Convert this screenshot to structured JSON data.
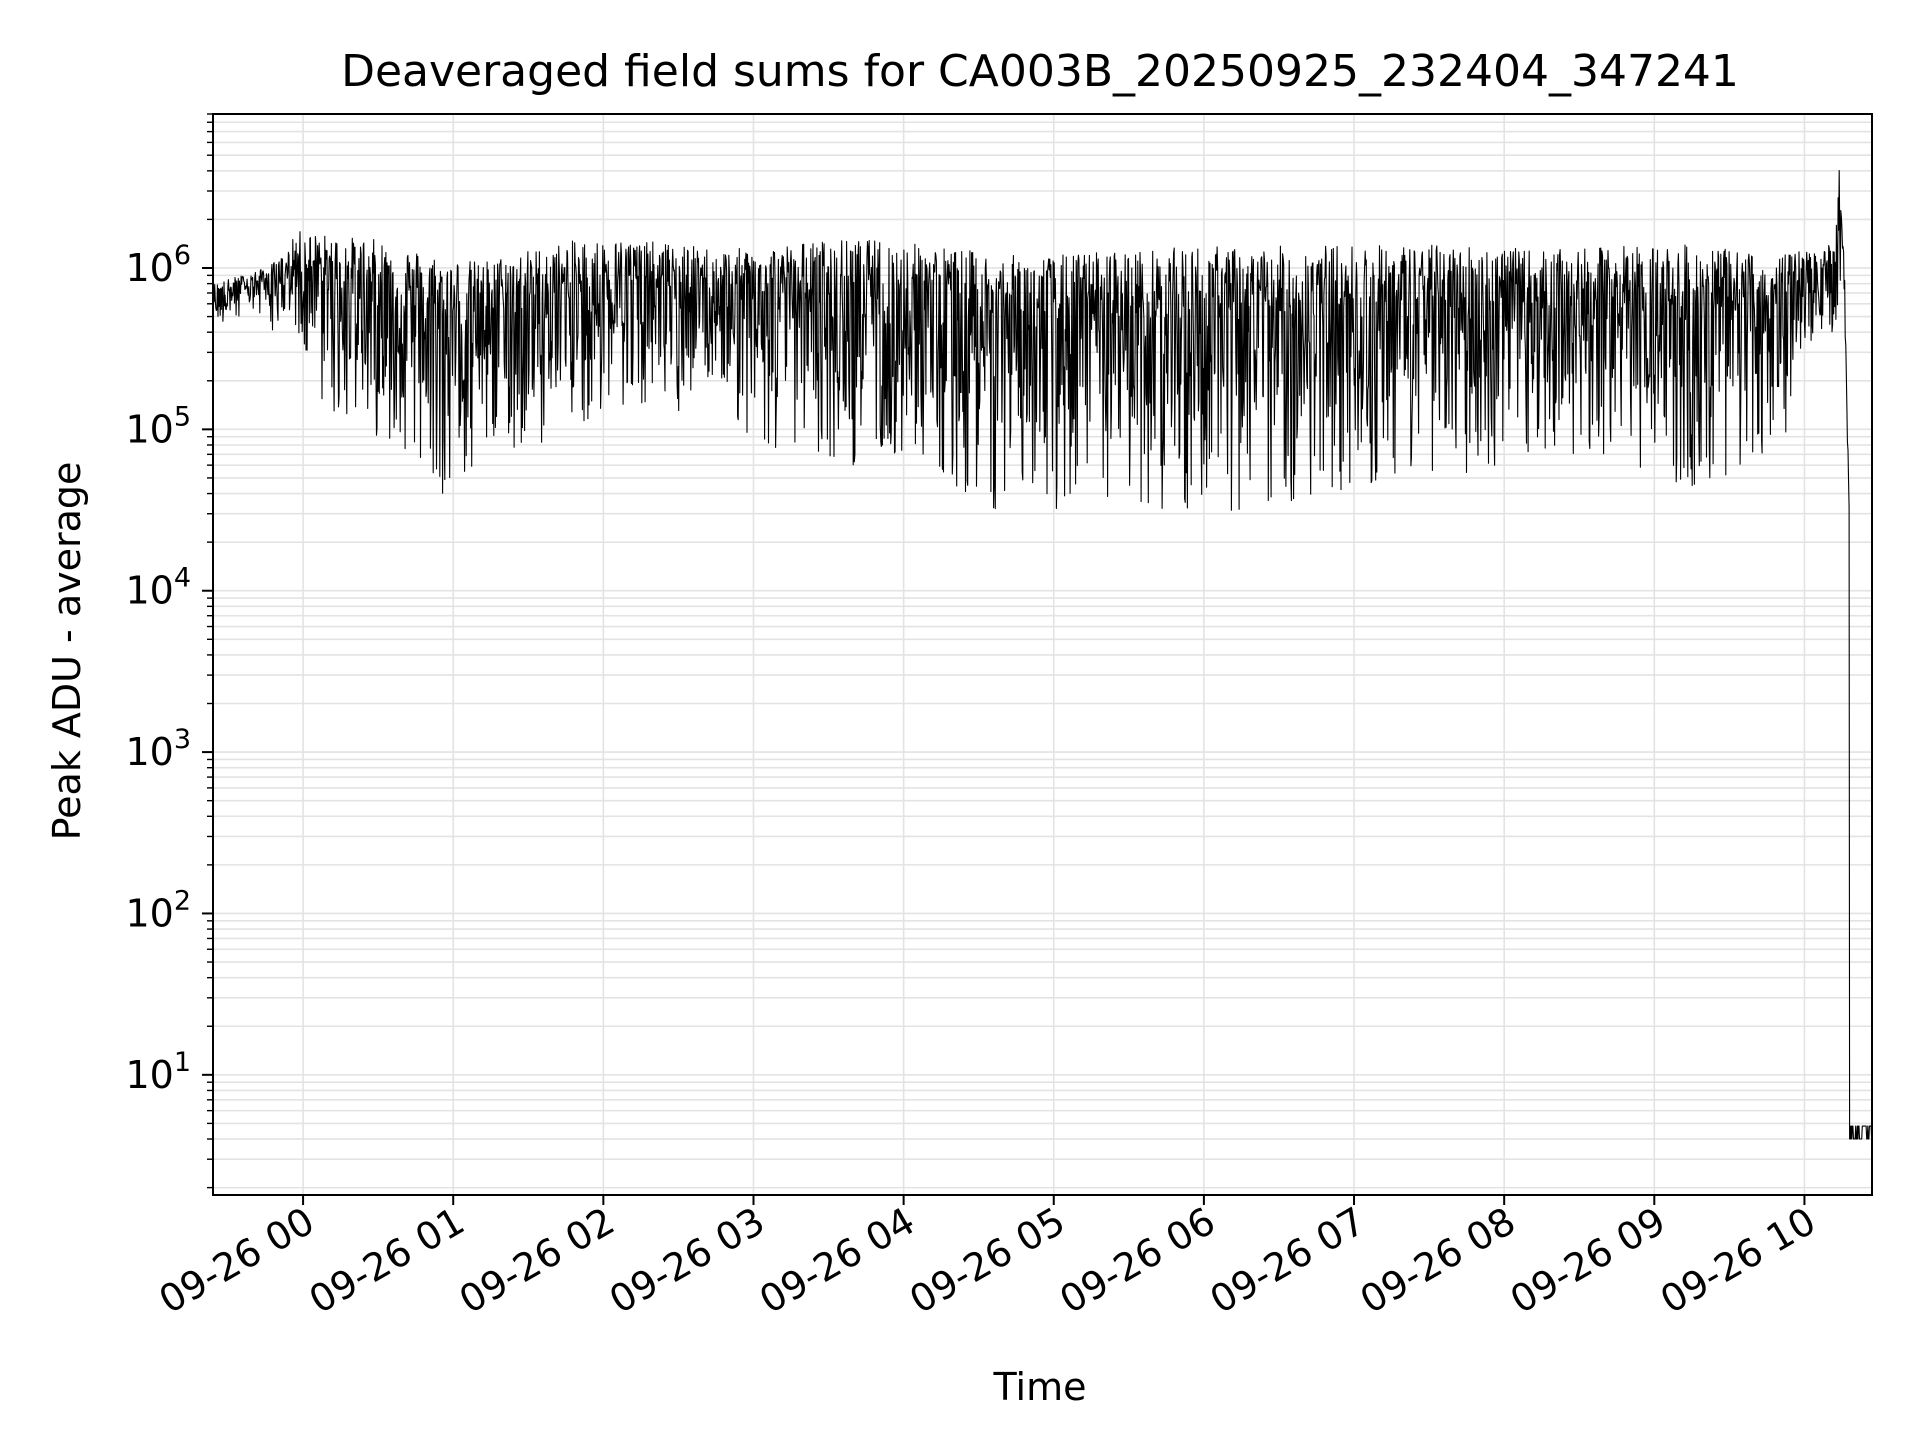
{
  "chart_data": {
    "type": "line",
    "title": "Deaveraged field sums for CA003B_20250925_232404_347241",
    "xlabel": "Time",
    "ylabel": "Peak ADU - average",
    "yscale": "log",
    "ylim": [
      1.8,
      9000000
    ],
    "xlim": [
      "09-25 23:24",
      "09-26 10:27"
    ],
    "x_ticks": [
      "09-26 00",
      "09-26 01",
      "09-26 02",
      "09-26 03",
      "09-26 04",
      "09-26 05",
      "09-26 06",
      "09-26 07",
      "09-26 08",
      "09-26 09",
      "09-26 10"
    ],
    "y_ticks": [
      {
        "base": "10",
        "exp": "1",
        "value": 10
      },
      {
        "base": "10",
        "exp": "2",
        "value": 100
      },
      {
        "base": "10",
        "exp": "3",
        "value": 1000
      },
      {
        "base": "10",
        "exp": "4",
        "value": 10000
      },
      {
        "base": "10",
        "exp": "5",
        "value": 100000
      },
      {
        "base": "10",
        "exp": "6",
        "value": 1000000
      }
    ],
    "grid": true,
    "line_color": "#000000",
    "grid_color": "#e3e3e3",
    "series": [
      {
        "description_values": "approximate envelope of a dense noisy signal (x, upper, lower)",
        "x": [
          "09-25 23:24",
          "09-25 23:45",
          "09-25 23:52",
          "09-25 23:58",
          "09-26 00:10",
          "09-26 00:30",
          "09-26 00:45",
          "09-26 00:55",
          "09-26 01:10",
          "09-26 01:30",
          "09-26 01:50",
          "09-26 02:10",
          "09-26 02:30",
          "09-26 02:50",
          "09-26 03:10",
          "09-26 03:30",
          "09-26 03:50",
          "09-26 04:10",
          "09-26 04:25",
          "09-26 04:40",
          "09-26 05:00",
          "09-26 05:20",
          "09-26 05:40",
          "09-26 06:00",
          "09-26 06:20",
          "09-26 06:35",
          "09-26 06:55",
          "09-26 07:10",
          "09-26 07:30",
          "09-26 07:50",
          "09-26 08:10",
          "09-26 08:30",
          "09-26 08:50",
          "09-26 09:10",
          "09-26 09:30",
          "09-26 09:50",
          "09-26 10:00",
          "09-26 10:12",
          "09-26 10:14",
          "09-26 10:16",
          "09-26 10:18",
          "09-26 10:27"
        ],
        "upper": [
          800000,
          1000000,
          1200000,
          1700000,
          1600000,
          1500000,
          1300000,
          1200000,
          1100000,
          1300000,
          1500000,
          1500000,
          1400000,
          1300000,
          1400000,
          1500000,
          1500000,
          1400000,
          1300000,
          1200000,
          1200000,
          1300000,
          1300000,
          1400000,
          1300000,
          1400000,
          1400000,
          1400000,
          1400000,
          1400000,
          1300000,
          1300000,
          1400000,
          1400000,
          1300000,
          1200000,
          1300000,
          1400000,
          4500000,
          1000000,
          25000,
          4
        ],
        "lower": [
          400000,
          500000,
          300000,
          300000,
          120000,
          90000,
          70000,
          30000,
          60000,
          80000,
          90000,
          150000,
          120000,
          100000,
          70000,
          60000,
          60000,
          60000,
          40000,
          30000,
          30000,
          30000,
          30000,
          30000,
          30000,
          35000,
          40000,
          45000,
          50000,
          55000,
          60000,
          70000,
          60000,
          40000,
          50000,
          60000,
          300000,
          400000,
          700000,
          400000,
          20000,
          4
        ]
      }
    ]
  }
}
